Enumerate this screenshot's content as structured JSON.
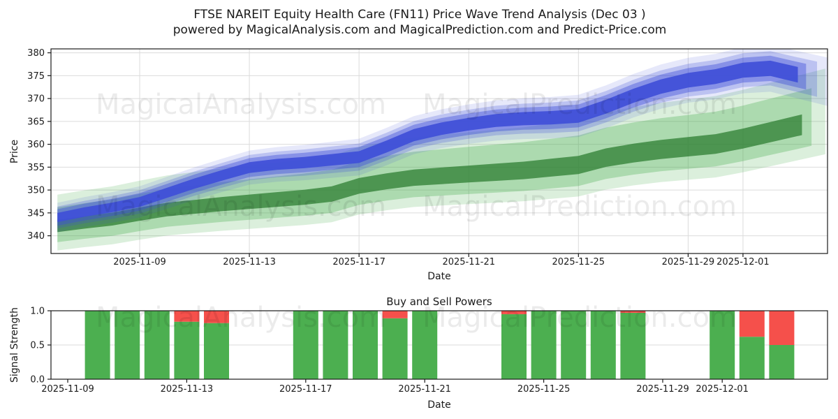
{
  "header": {
    "title_line1": "FTSE NAREIT Equity Health Care (FN11) Price Wave Trend Analysis (Dec 03 )",
    "title_line2": "powered by MagicalAnalysis.com and MagicalPrediction.com and Predict-Price.com"
  },
  "watermarks": {
    "left": "MagicalAnalysis.com",
    "right": "MagicalPrediction.com"
  },
  "colors": {
    "blue": "#3F4FD8",
    "green": "#4CAF50",
    "green_core": "#2E7D32",
    "red": "#F5504B",
    "grid": "#DBDBDB",
    "axis": "#1A1A1A",
    "watermark": "rgba(0,0,0,0.08)"
  },
  "chart_data": [
    {
      "type": "area",
      "name": "price-wave-trend",
      "xlabel": "Date",
      "ylabel": "Price",
      "ylim": [
        336,
        381.5
      ],
      "yticks": [
        340,
        345,
        350,
        355,
        360,
        365,
        370,
        375,
        380
      ],
      "xticks": [
        "2025-11-09",
        "2025-11-13",
        "2025-11-17",
        "2025-11-21",
        "2025-11-25",
        "2025-11-29",
        "2025-12-01"
      ],
      "grid": true,
      "legend": false,
      "dates": [
        "2025-11-06",
        "2025-11-07",
        "2025-11-08",
        "2025-11-09",
        "2025-11-10",
        "2025-11-11",
        "2025-11-12",
        "2025-11-13",
        "2025-11-14",
        "2025-11-15",
        "2025-11-16",
        "2025-11-17",
        "2025-11-18",
        "2025-11-19",
        "2025-11-20",
        "2025-11-21",
        "2025-11-22",
        "2025-11-23",
        "2025-11-24",
        "2025-11-25",
        "2025-11-26",
        "2025-11-27",
        "2025-11-28",
        "2025-11-29",
        "2025-11-30",
        "2025-12-01",
        "2025-12-02",
        "2025-12-03"
      ],
      "series": [
        {
          "name": "trend-band-green",
          "color_key": "green",
          "median": [
            342.0,
            342.8,
            343.5,
            344.6,
            345.6,
            346.2,
            346.8,
            347.3,
            347.8,
            348.3,
            349.0,
            350.8,
            351.8,
            352.6,
            353.0,
            353.4,
            353.8,
            354.2,
            354.8,
            355.4,
            357.0,
            358.0,
            358.8,
            359.4,
            360.0,
            361.2,
            362.6,
            364.0
          ],
          "layers": [
            {
              "band": "outer",
              "hw_hi": [
                7.0,
                11.0
              ],
              "hw_lo": [
                5.2,
                7.5
              ],
              "alpha": 0.2,
              "extend": 1.0
            },
            {
              "band": "mid",
              "hw_hi": [
                4.2,
                7.5
              ],
              "hw_lo": [
                3.4,
                5.0
              ],
              "alpha": 0.32,
              "extend": 0.5
            },
            {
              "band": "core",
              "hw_hi": [
                1.5,
                2.3
              ],
              "hw_lo": [
                1.2,
                2.2
              ],
              "alpha": 0.75,
              "extend": 0.15,
              "color_key": "green_core"
            }
          ]
        },
        {
          "name": "prediction-band-blue",
          "color_key": "blue",
          "median": [
            344.0,
            345.2,
            346.2,
            347.4,
            349.4,
            351.4,
            353.2,
            354.9,
            355.6,
            356.0,
            356.6,
            357.2,
            359.5,
            362.0,
            363.4,
            364.4,
            365.2,
            365.6,
            365.8,
            366.2,
            368.2,
            370.6,
            372.6,
            374.0,
            374.8,
            376.2,
            376.6,
            375.2
          ],
          "layers": [
            {
              "band": "halo",
              "hw_hi": [
                3.2,
                5.2
              ],
              "hw_lo": [
                3.2,
                5.2
              ],
              "alpha": 0.13,
              "extend": 1.2
            },
            {
              "band": "outer",
              "hw_hi": [
                2.4,
                3.8
              ],
              "hw_lo": [
                2.4,
                3.8
              ],
              "alpha": 0.25,
              "extend": 0.7
            },
            {
              "band": "mid",
              "hw_hi": [
                1.8,
                2.8
              ],
              "hw_lo": [
                1.8,
                2.8
              ],
              "alpha": 0.42,
              "extend": 0.3
            },
            {
              "band": "core",
              "hw_hi": [
                1.0,
                1.7
              ],
              "hw_lo": [
                1.0,
                1.7
              ],
              "alpha": 0.92,
              "extend": 0
            }
          ]
        }
      ]
    },
    {
      "type": "bar",
      "name": "buy-sell-powers",
      "title": "Buy and Sell Powers",
      "xlabel": "Date",
      "ylabel": "Signal Strength",
      "ylim": [
        0,
        1
      ],
      "ytick_labels": [
        "0.0",
        "0.5",
        "1.0"
      ],
      "xticks": [
        "2025-11-09",
        "2025-11-13",
        "2025-11-17",
        "2025-11-21",
        "2025-11-25",
        "2025-11-29",
        "2025-12-01"
      ],
      "bars": [
        {
          "date": "2025-11-10",
          "buy": 1.0,
          "sell": 0.0
        },
        {
          "date": "2025-11-11",
          "buy": 1.0,
          "sell": 0.0
        },
        {
          "date": "2025-11-12",
          "buy": 1.0,
          "sell": 0.0
        },
        {
          "date": "2025-11-13",
          "buy": 0.84,
          "sell": 0.16
        },
        {
          "date": "2025-11-14",
          "buy": 0.82,
          "sell": 0.18
        },
        {
          "date": "2025-11-17",
          "buy": 1.0,
          "sell": 0.0
        },
        {
          "date": "2025-11-18",
          "buy": 1.0,
          "sell": 0.0
        },
        {
          "date": "2025-11-19",
          "buy": 1.0,
          "sell": 0.0
        },
        {
          "date": "2025-11-20",
          "buy": 0.89,
          "sell": 0.11
        },
        {
          "date": "2025-11-21",
          "buy": 1.0,
          "sell": 0.0
        },
        {
          "date": "2025-11-24",
          "buy": 0.95,
          "sell": 0.05
        },
        {
          "date": "2025-11-25",
          "buy": 1.0,
          "sell": 0.0
        },
        {
          "date": "2025-11-26",
          "buy": 1.0,
          "sell": 0.0
        },
        {
          "date": "2025-11-27",
          "buy": 1.0,
          "sell": 0.0
        },
        {
          "date": "2025-11-28",
          "buy": 0.97,
          "sell": 0.03
        },
        {
          "date": "2025-12-01",
          "buy": 1.0,
          "sell": 0.0
        },
        {
          "date": "2025-12-02",
          "buy": 0.62,
          "sell": 0.38
        },
        {
          "date": "2025-12-03",
          "buy": 0.5,
          "sell": 0.5
        }
      ]
    }
  ]
}
